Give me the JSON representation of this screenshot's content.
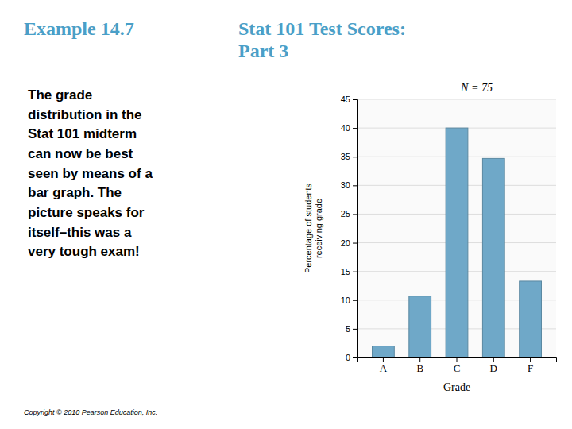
{
  "chart_data": {
    "type": "bar",
    "title": "Stat 101 Test Scores:\nPart 3",
    "subtitle": "Example 14.7",
    "annotations": [
      "The grade\ndistribution in the\nStat 101 midterm\ncan now be best\nseen by means of a\nbar graph. The\npicture speaks for\nitself–this was a\nvery tough exam!",
      "N = 75",
      "Copyright © 2010 Pearson Education, Inc."
    ],
    "x_label": "Grade",
    "y_label": "Percentage of students\nreceiving grade",
    "categories": [
      "A",
      "B",
      "C",
      "D",
      "F"
    ],
    "values": [
      2.0,
      10.7,
      40.0,
      34.7,
      13.3
    ],
    "color": "#6fa8c8",
    "ylim": [
      0,
      45
    ],
    "yticks": [
      0,
      5,
      10,
      15,
      20,
      25,
      30,
      35,
      40,
      45
    ],
    "grid": true
  }
}
